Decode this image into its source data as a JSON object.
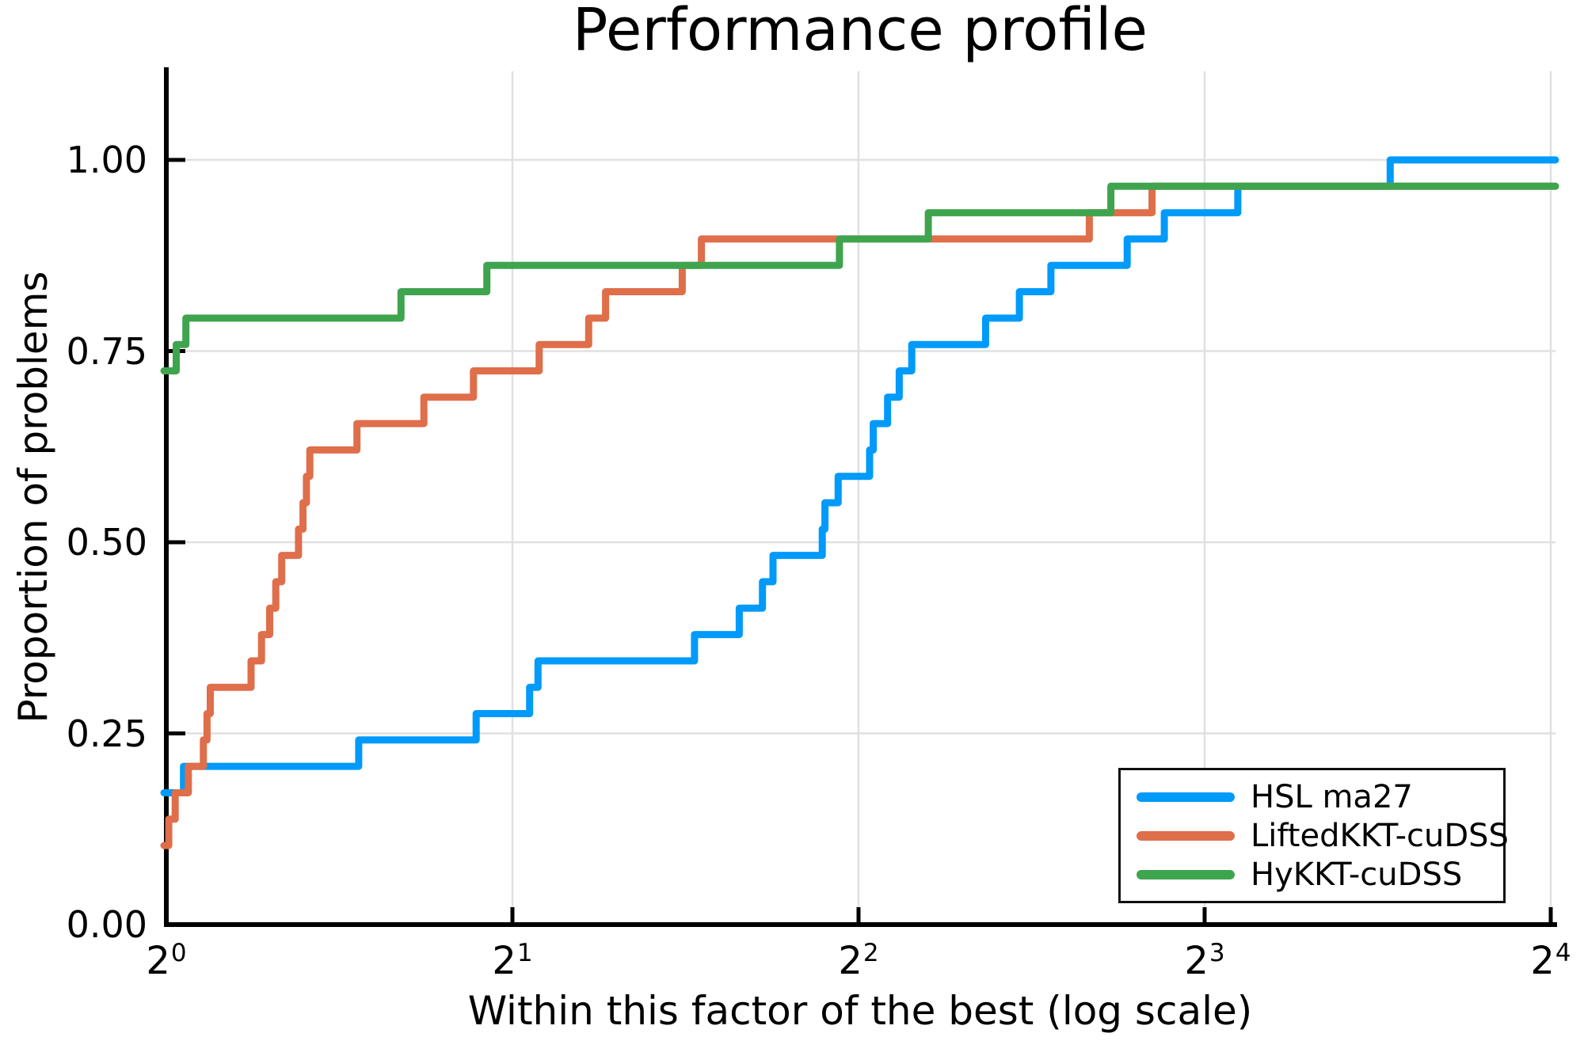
{
  "title": "Performance profile",
  "xlabel": "Within this factor of the best (log scale)",
  "ylabel": "Proportion of problems",
  "legend": {
    "items": [
      {
        "label": "HSL ma27",
        "color": "#009AFA"
      },
      {
        "label": "LiftedKKT-cuDSS",
        "color": "#DF6E4A"
      },
      {
        "label": "HyKKT-cuDSS",
        "color": "#3FA44E"
      }
    ]
  },
  "colors": {
    "blue": "#009AFA",
    "orange": "#DF6E4A",
    "green": "#3FA44E",
    "grid": "#e0e0e0",
    "axis": "#000000",
    "background": "#ffffff"
  },
  "chart_data": {
    "type": "line",
    "subtype": "step-post",
    "title": "Performance profile",
    "xlabel": "Within this factor of the best (log scale)",
    "ylabel": "Proportion of problems",
    "x_scale": "log2",
    "x_range": [
      1,
      16
    ],
    "ylim": [
      0.0,
      1.1
    ],
    "grid": true,
    "legend_position": "bottom-right",
    "n_problems": 29,
    "x_ticks": [
      {
        "base": "2",
        "exp": "0",
        "t": 1
      },
      {
        "base": "2",
        "exp": "1",
        "t": 2
      },
      {
        "base": "2",
        "exp": "2",
        "t": 4
      },
      {
        "base": "2",
        "exp": "3",
        "t": 8
      },
      {
        "base": "2",
        "exp": "4",
        "t": 16
      }
    ],
    "y_ticks": [
      {
        "label": "0.00",
        "v": 0.0
      },
      {
        "label": "0.25",
        "v": 0.25
      },
      {
        "label": "0.50",
        "v": 0.5
      },
      {
        "label": "0.75",
        "v": 0.75
      },
      {
        "label": "1.00",
        "v": 1.0
      }
    ],
    "series": [
      {
        "name": "HSL ma27",
        "color": "#009AFA",
        "start_value": 0.1724,
        "steps": [
          [
            1.035,
            0.2069
          ],
          [
            1.47,
            0.2414
          ],
          [
            1.86,
            0.2759
          ],
          [
            2.07,
            0.3103
          ],
          [
            2.105,
            0.3448
          ],
          [
            2.88,
            0.3793
          ],
          [
            3.15,
            0.4138
          ],
          [
            3.3,
            0.4483
          ],
          [
            3.37,
            0.4828
          ],
          [
            3.72,
            0.5172
          ],
          [
            3.74,
            0.5517
          ],
          [
            3.84,
            0.5862
          ],
          [
            4.09,
            0.6207
          ],
          [
            4.12,
            0.6552
          ],
          [
            4.24,
            0.6897
          ],
          [
            4.34,
            0.7241
          ],
          [
            4.45,
            0.7586
          ],
          [
            5.16,
            0.7931
          ],
          [
            5.52,
            0.8276
          ],
          [
            5.88,
            0.8621
          ],
          [
            6.85,
            0.8966
          ],
          [
            7.38,
            0.931
          ],
          [
            8.55,
            0.9655
          ],
          [
            11.6,
            1.0
          ]
        ]
      },
      {
        "name": "LiftedKKT-cuDSS",
        "color": "#DF6E4A",
        "start_value": 0.1034,
        "steps": [
          [
            1.005,
            0.1379
          ],
          [
            1.018,
            0.1724
          ],
          [
            1.045,
            0.2069
          ],
          [
            1.077,
            0.2414
          ],
          [
            1.085,
            0.2759
          ],
          [
            1.092,
            0.3103
          ],
          [
            1.185,
            0.3448
          ],
          [
            1.21,
            0.3793
          ],
          [
            1.23,
            0.4138
          ],
          [
            1.245,
            0.4483
          ],
          [
            1.26,
            0.4828
          ],
          [
            1.303,
            0.5172
          ],
          [
            1.315,
            0.5517
          ],
          [
            1.324,
            0.5862
          ],
          [
            1.333,
            0.6207
          ],
          [
            1.465,
            0.6552
          ],
          [
            1.675,
            0.6897
          ],
          [
            1.85,
            0.7241
          ],
          [
            2.11,
            0.7586
          ],
          [
            2.33,
            0.7931
          ],
          [
            2.41,
            0.8276
          ],
          [
            2.81,
            0.8621
          ],
          [
            2.92,
            0.8966
          ],
          [
            6.35,
            0.931
          ],
          [
            7.2,
            0.9655
          ]
        ]
      },
      {
        "name": "HyKKT-cuDSS",
        "color": "#3FA44E",
        "start_value": 0.7241,
        "steps": [
          [
            1.02,
            0.7586
          ],
          [
            1.04,
            0.7931
          ],
          [
            1.6,
            0.8276
          ],
          [
            1.9,
            0.8621
          ],
          [
            3.85,
            0.8966
          ],
          [
            4.6,
            0.931
          ],
          [
            6.63,
            0.9655
          ]
        ]
      }
    ]
  }
}
